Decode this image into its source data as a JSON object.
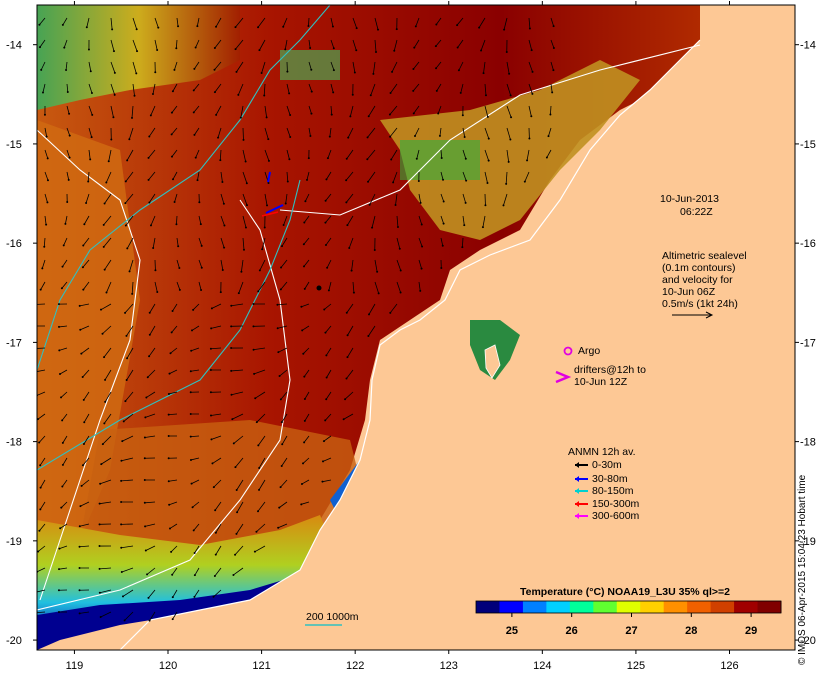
{
  "map": {
    "lat_ticks": [
      "-14",
      "-15",
      "-16",
      "-17",
      "-18",
      "-19",
      "-20"
    ],
    "lon_ticks": [
      "119",
      "120",
      "121",
      "122",
      "123",
      "124",
      "125",
      "126"
    ],
    "lon_range": [
      118.6,
      126.7
    ],
    "lat_range": [
      -13.6,
      -20.1
    ]
  },
  "timestamp": {
    "line1": "10-Jun-2013",
    "line2": "06:22Z"
  },
  "altimetry_note": [
    "Altimetric sealevel",
    "(0.1m contours)",
    "and velocity for",
    "10-Jun 06Z",
    "0.5m/s (1kt 24h)"
  ],
  "argo_label": "Argo",
  "drifters_label": [
    "drifters@12h to",
    "10-Jun 12Z"
  ],
  "anmn": {
    "title": "ANMN 12h av.",
    "items": [
      {
        "label": "0-30m",
        "color": "#000000"
      },
      {
        "label": "30-80m",
        "color": "#0000ff"
      },
      {
        "label": "80-150m",
        "color": "#00d0d0"
      },
      {
        "label": "150-300m",
        "color": "#ff0000"
      },
      {
        "label": "300-600m",
        "color": "#ff00ff"
      }
    ]
  },
  "scale_label": "200  1000m",
  "colorbar": {
    "title": "Temperature (°C) NOAA19_L3U 35% ql>=2",
    "ticks": [
      "25",
      "26",
      "27",
      "28",
      "29"
    ],
    "range": [
      24.4,
      29.5
    ],
    "colors": [
      "#00007a",
      "#0000ff",
      "#0080ff",
      "#00d0ff",
      "#00ff9a",
      "#60ff30",
      "#e0ff00",
      "#ffd000",
      "#ff9000",
      "#f06000",
      "#d04000",
      "#a00000",
      "#800000"
    ]
  },
  "credit": "© IMOS 06-Apr-2015 15:04:23 Hobart time",
  "colors": {
    "land": "#fdc895",
    "coast": "#ffffff",
    "contour_white": "#ffffff",
    "contour_cyan": "#30c0c0",
    "argo": "#e000e0"
  }
}
